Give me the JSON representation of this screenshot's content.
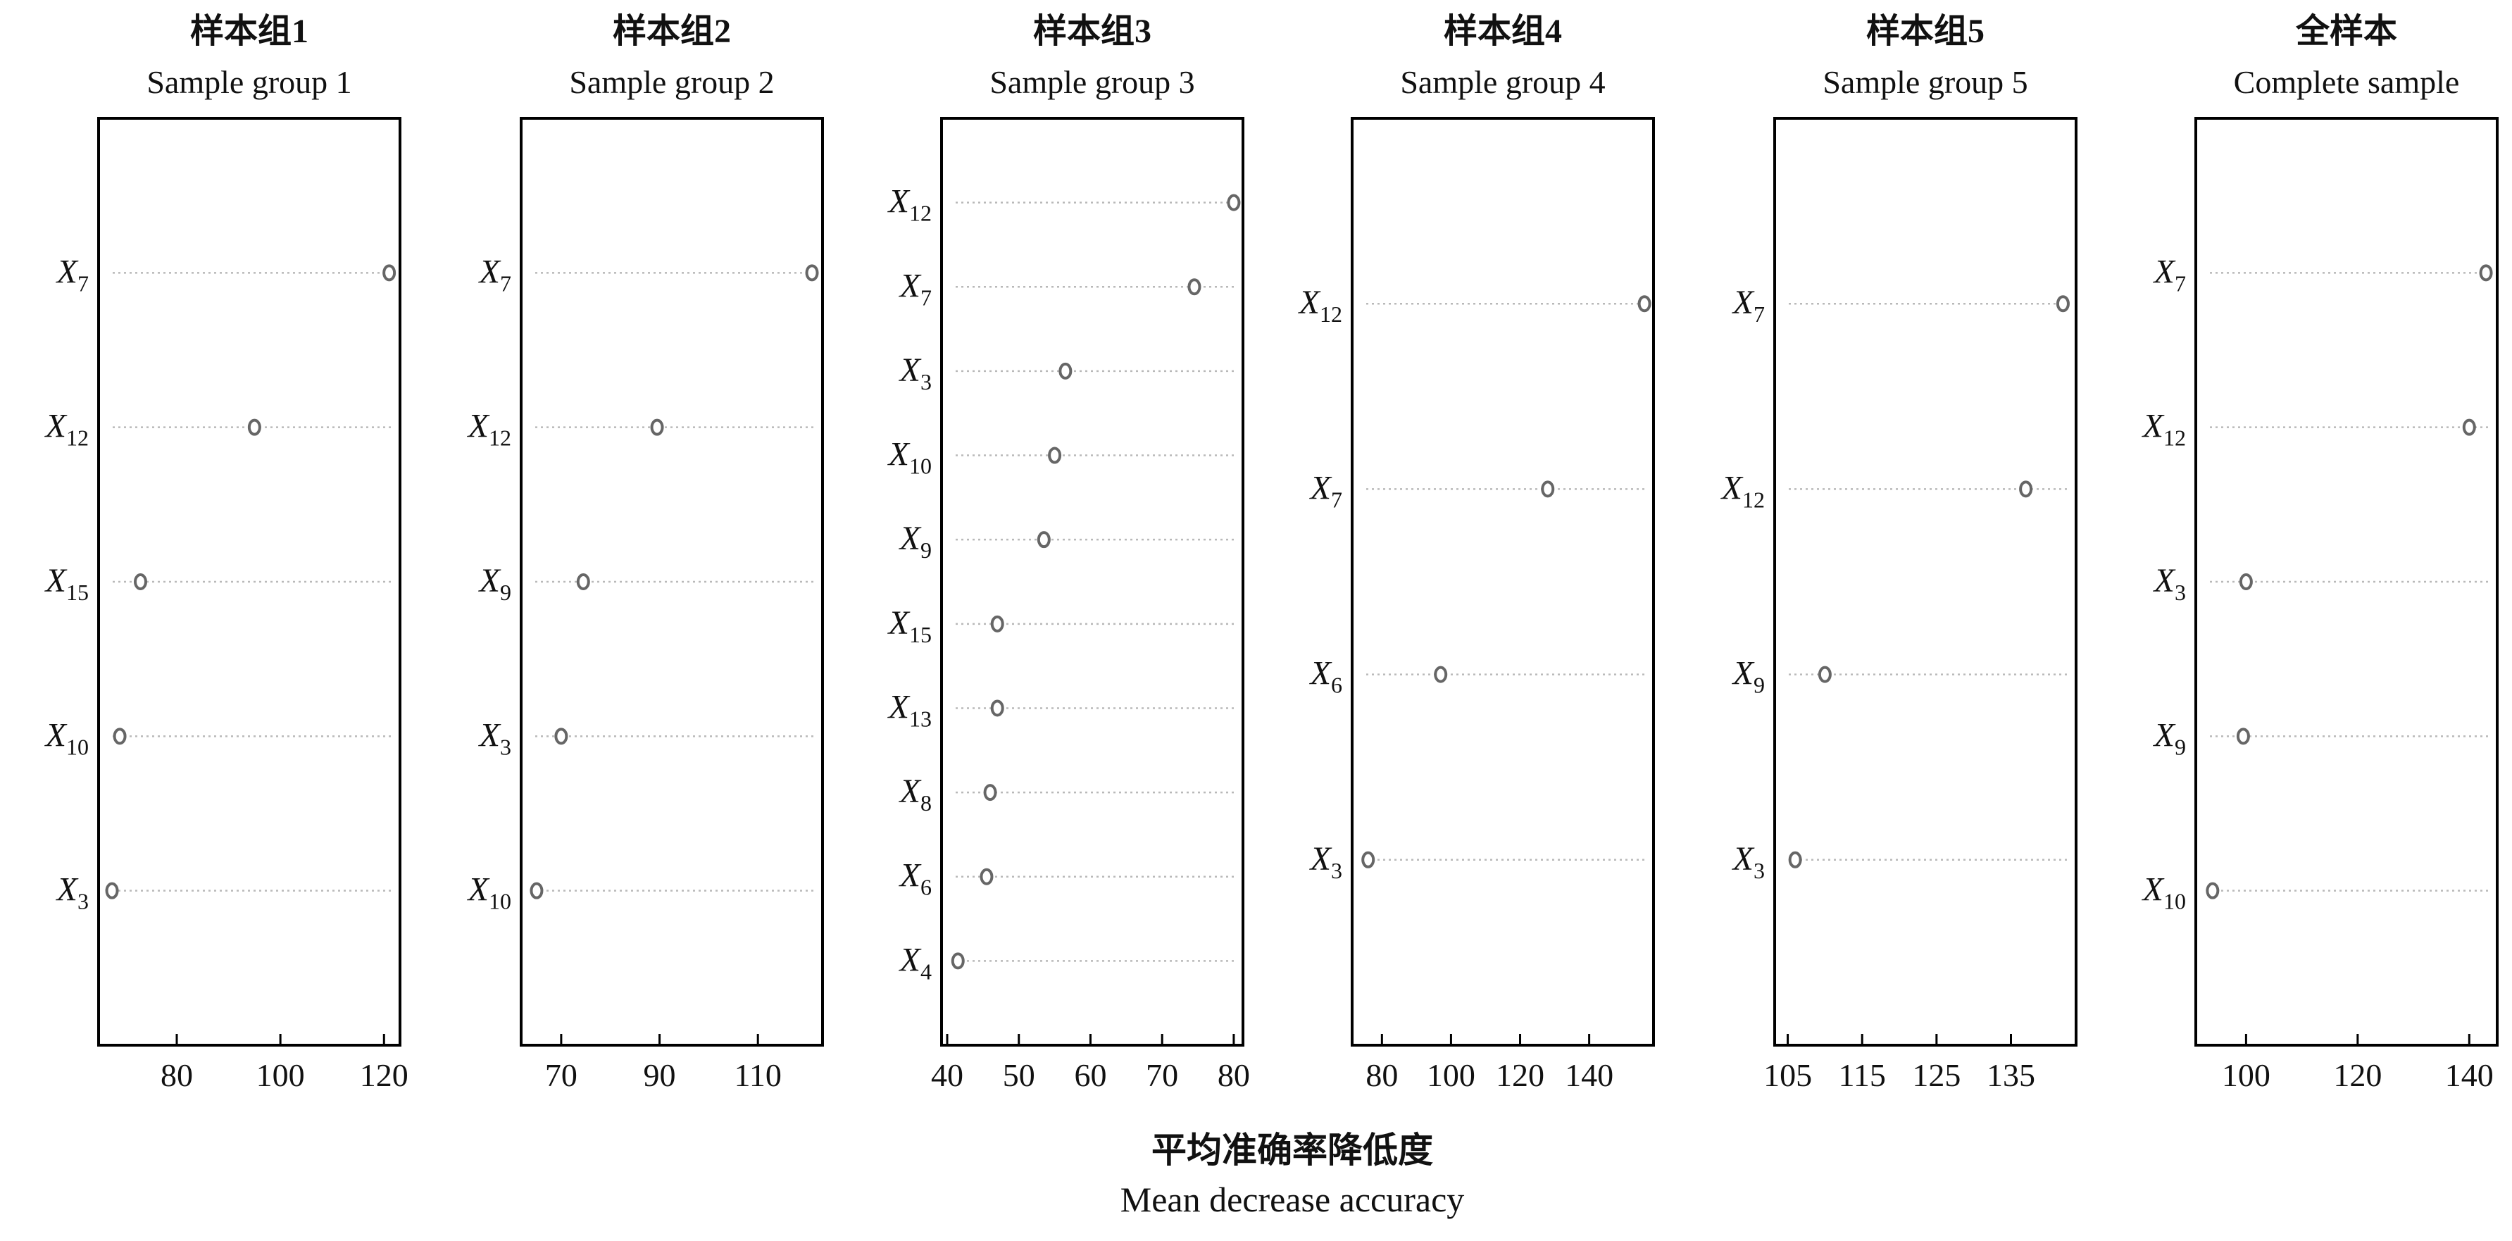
{
  "x_label": {
    "cn": "平均准确率降低度",
    "en": "Mean decrease accuracy"
  },
  "chart_data": [
    {
      "type": "scatter",
      "title": "样本组1",
      "subtitle": "Sample group 1",
      "xlim": [
        66,
        122
      ],
      "xticks": [
        80,
        100,
        120
      ],
      "categories": [
        "X7",
        "X12",
        "X15",
        "X10",
        "X3"
      ],
      "values": [
        121,
        95,
        73,
        69,
        67.5
      ]
    },
    {
      "type": "scatter",
      "title": "样本组2",
      "subtitle": "Sample group 2",
      "xlim": [
        63,
        122
      ],
      "xticks": [
        70,
        90,
        110
      ],
      "categories": [
        "X7",
        "X12",
        "X9",
        "X3",
        "X10"
      ],
      "values": [
        121,
        89.5,
        74.5,
        70,
        65
      ]
    },
    {
      "type": "scatter",
      "title": "样本组3",
      "subtitle": "Sample group 3",
      "xlim": [
        40,
        80.5
      ],
      "xticks": [
        40,
        50,
        60,
        70,
        80
      ],
      "categories": [
        "X12",
        "X7",
        "X3",
        "X10",
        "X9",
        "X15",
        "X13",
        "X8",
        "X6",
        "X4"
      ],
      "values": [
        80,
        74.5,
        56.5,
        55,
        53.5,
        47,
        47,
        46,
        45.5,
        41.5
      ]
    },
    {
      "type": "scatter",
      "title": "样本组4",
      "subtitle": "Sample group 4",
      "xlim": [
        73,
        157
      ],
      "xticks": [
        80,
        100,
        120,
        140
      ],
      "categories": [
        "X12",
        "X7",
        "X6",
        "X3"
      ],
      "values": [
        156,
        128,
        97,
        76
      ]
    },
    {
      "type": "scatter",
      "title": "样本组5",
      "subtitle": "Sample group 5",
      "xlim": [
        104,
        143
      ],
      "xticks": [
        105,
        115,
        125,
        135
      ],
      "categories": [
        "X7",
        "X12",
        "X9",
        "X3"
      ],
      "values": [
        142,
        137,
        110,
        106
      ]
    },
    {
      "type": "scatter",
      "title": "全样本",
      "subtitle": "Complete sample",
      "xlim": [
        92,
        144
      ],
      "xticks": [
        100,
        120,
        140
      ],
      "categories": [
        "X7",
        "X12",
        "X3",
        "X9",
        "X10"
      ],
      "values": [
        143,
        140,
        100,
        99.5,
        94
      ]
    }
  ]
}
